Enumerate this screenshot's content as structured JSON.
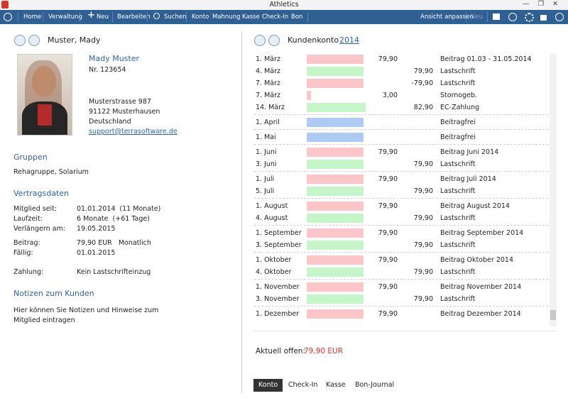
{
  "window": {
    "title": "Athletics"
  },
  "toolbar": {
    "items": [
      "Home",
      "Verwaltung",
      "Neu",
      "Bearbeiten",
      "Suchen",
      "Konto",
      "Mahnung",
      "Kasse",
      "Check-In",
      "Bon"
    ],
    "right": [
      "Ansicht anpassen",
      "Neu"
    ]
  },
  "member": {
    "header_name": "Muster, Mady",
    "name": "Mady Muster",
    "number": "Nr. 123654",
    "address": [
      "Musterstrasse 987",
      "91122 Musterhausen",
      "Deutschland"
    ],
    "email": "support@terrasoftware.de"
  },
  "groups": {
    "heading": "Gruppen",
    "text": "Rehagruppe, Solarium"
  },
  "contract": {
    "heading": "Vertragsdaten",
    "blocks": [
      [
        [
          "Mitglied seit:",
          "01.01.2014  (11 Monate)"
        ],
        [
          "Laufzeit:",
          "6 Monate  (+61 Tage)"
        ],
        [
          "Verlängern am:",
          "19.05.2015"
        ]
      ],
      [
        [
          "Beitrag:",
          "79,90 EUR   Monatlich"
        ],
        [
          "Fällig:",
          "01.01.2015"
        ]
      ],
      [
        [
          "Zahlung:",
          "Kein Lastschrifteinzug"
        ]
      ]
    ]
  },
  "notes": {
    "heading": "Notizen zum Kunden",
    "text": "Hier können Sie Notizen und Hinweise zum Mitglied eintragen"
  },
  "account": {
    "title": "Kundenkonto",
    "year": "2014",
    "months": [
      [
        {
          "date": "1. März",
          "debit": "79,90",
          "text": "Beitrag 01.03 - 31.05.2014",
          "color": "#fcc6c9"
        },
        {
          "date": "4. März",
          "credit": "79,90",
          "text": "Lastschrift",
          "color": "#c6f5ca"
        },
        {
          "date": "7. März",
          "credit": "-79,90",
          "text": "Lastschrift",
          "color": "#fcc6c9"
        },
        {
          "date": "7. März",
          "debit": "3,00",
          "text": "Stornogeb.",
          "color": "#fcc6c9"
        },
        {
          "date": "14. März",
          "credit": "82,90",
          "text": "EC-Zahlung",
          "color": "#c6f5ca"
        }
      ],
      [
        {
          "date": "1. April",
          "text": "Beitragfrei",
          "color": "#afcbf3"
        }
      ],
      [
        {
          "date": "1. Mai",
          "text": "Beitragfrei",
          "color": "#afcbf3"
        }
      ],
      [
        {
          "date": "1. Juni",
          "debit": "79,90",
          "text": "Beitrag Juni 2014",
          "color": "#fcc6c9"
        },
        {
          "date": "3. Juni",
          "credit": "79,90",
          "text": "Lastschrift",
          "color": "#c6f5ca"
        }
      ],
      [
        {
          "date": "1. Juli",
          "debit": "79,90",
          "text": "Beitrag Juli 2014",
          "color": "#fcc6c9"
        },
        {
          "date": "5. Juli",
          "credit": "79,90",
          "text": "Lastschrift",
          "color": "#c6f5ca"
        }
      ],
      [
        {
          "date": "1. August",
          "debit": "79,90",
          "text": "Beitrag August 2014",
          "color": "#fcc6c9"
        },
        {
          "date": "4. August",
          "credit": "79,90",
          "text": "Lastschrift",
          "color": "#c6f5ca"
        }
      ],
      [
        {
          "date": "1. September",
          "debit": "79,90",
          "text": "Beitrag September 2014",
          "color": "#fcc6c9"
        },
        {
          "date": "3. September",
          "credit": "79,90",
          "text": "Lastschrift",
          "color": "#c6f5ca"
        }
      ],
      [
        {
          "date": "1. Oktober",
          "debit": "79,90",
          "text": "Beitrag Oktober 2014",
          "color": "#fcc6c9"
        },
        {
          "date": "4. Oktober",
          "credit": "79,90",
          "text": "Lastschrift",
          "color": "#c6f5ca"
        }
      ],
      [
        {
          "date": "1. November",
          "debit": "79,90",
          "text": "Beitrag November 2014",
          "color": "#fcc6c9"
        },
        {
          "date": "3. November",
          "credit": "79,90",
          "text": "Lastschrift",
          "color": "#c6f5ca"
        }
      ],
      [
        {
          "date": "1. Dezember",
          "debit": "79,90",
          "text": "Beitrag Dezember 2014",
          "color": "#fcc6c9"
        }
      ]
    ],
    "open_label": "Aktuell offen:",
    "open_value": "79,90 EUR"
  },
  "tabs": [
    "Konto",
    "Check-In",
    "Kasse",
    "Bon-Journal"
  ]
}
